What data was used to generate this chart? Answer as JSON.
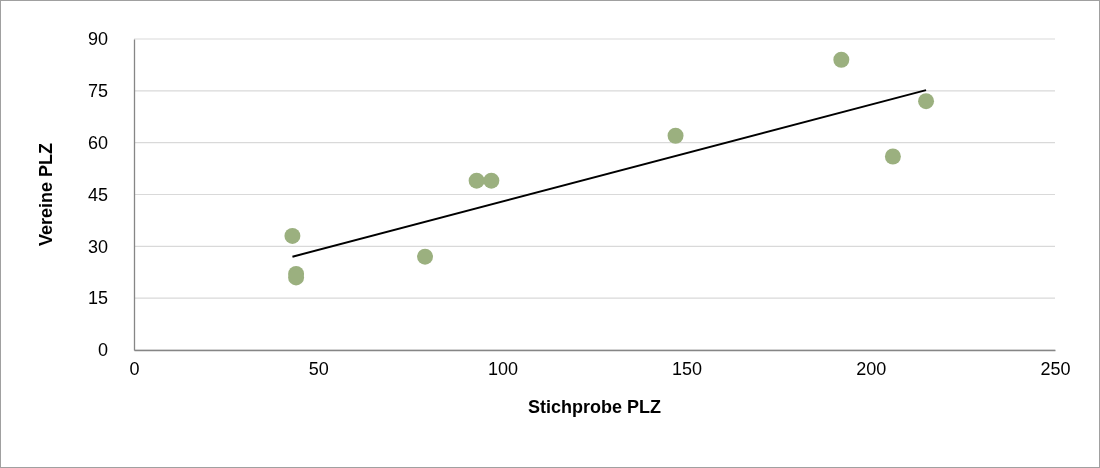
{
  "chart_data": {
    "type": "scatter",
    "xlabel": "Stichprobe PLZ",
    "ylabel": "Vereine PLZ",
    "xlim": [
      0,
      250
    ],
    "xticks": [
      0,
      50,
      100,
      150,
      200,
      250
    ],
    "ylim": [
      0,
      90
    ],
    "yticks": [
      0,
      15,
      30,
      45,
      60,
      75,
      90
    ],
    "grid": "y",
    "marker": "circle",
    "series": [
      {
        "color": "#9bb07f",
        "x": [
          43,
          44,
          44,
          79,
          93,
          97,
          147,
          192,
          206,
          215
        ],
        "values": [
          33,
          22,
          21,
          27,
          49,
          49,
          62,
          84,
          56,
          72
        ]
      },
      {
        "type": "line",
        "color": "#000000",
        "marker": "none",
        "x": [
          43,
          215
        ],
        "values": [
          27,
          75.2
        ]
      }
    ]
  }
}
